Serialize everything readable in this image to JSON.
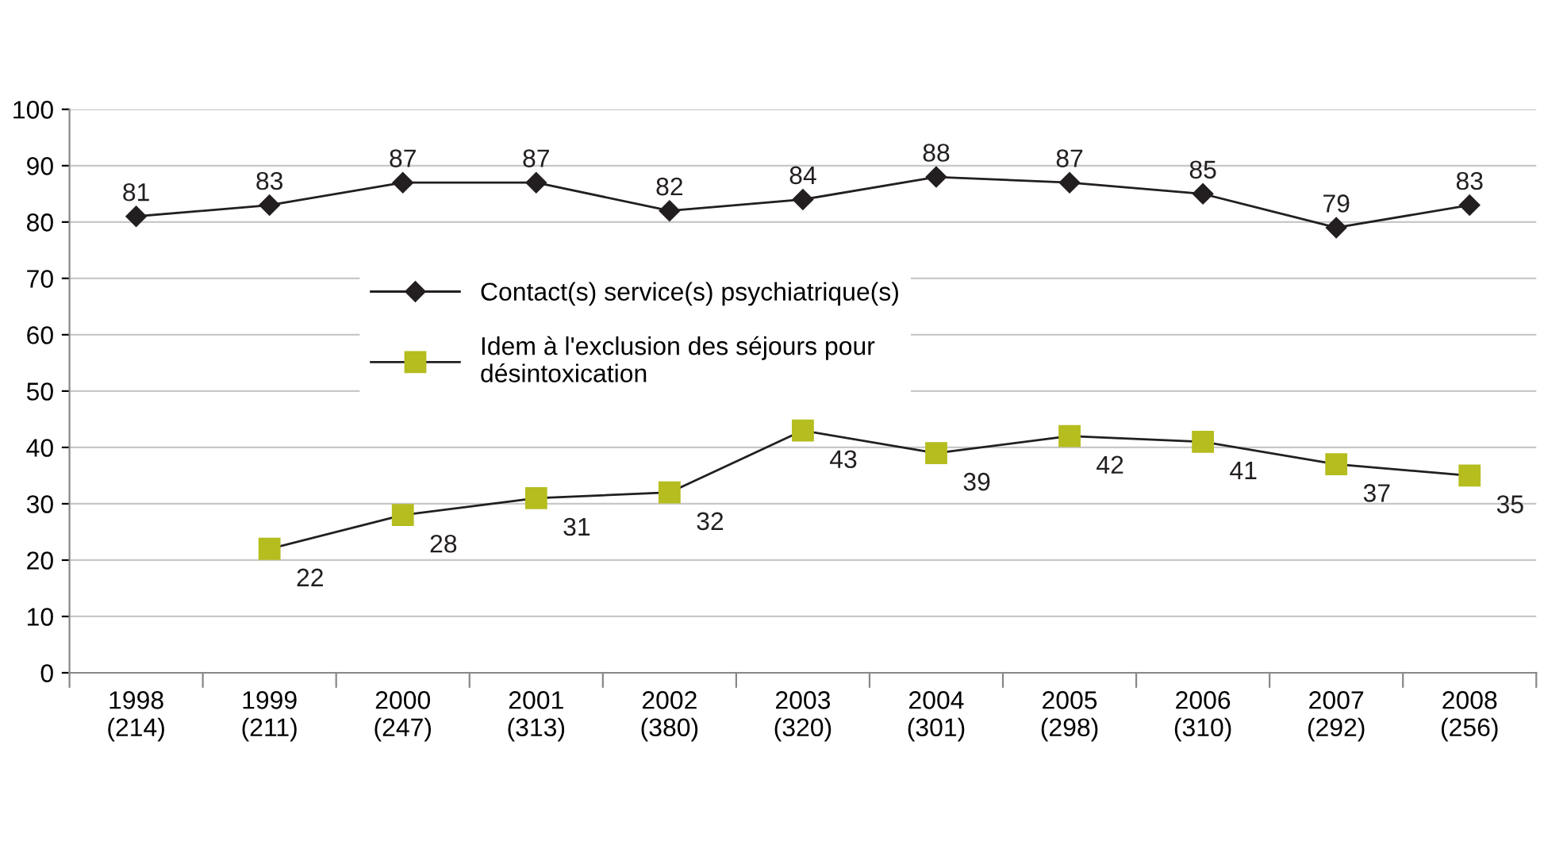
{
  "chart_data": {
    "type": "line",
    "categories": [
      "1998\n(214)",
      "1999\n(211)",
      "2000\n(247)",
      "2001\n(313)",
      "2002\n(380)",
      "2003\n(320)",
      "2004\n(301)",
      "2005\n(298)",
      "2006\n(310)",
      "2007\n(292)",
      "2008\n(256)"
    ],
    "series": [
      {
        "name": "Contact(s) service(s) psychiatrique(s)",
        "color": "#231f20",
        "marker": "diamond",
        "values": [
          81,
          83,
          87,
          87,
          82,
          84,
          88,
          87,
          85,
          79,
          83
        ]
      },
      {
        "name": "Idem à l'exclusion des séjours pour\ndésintoxication",
        "color": "#b5bd1f",
        "marker": "square",
        "values": [
          null,
          22,
          28,
          31,
          32,
          43,
          39,
          42,
          41,
          37,
          35
        ]
      }
    ],
    "ylim": [
      0,
      100
    ],
    "yticks": [
      0,
      10,
      20,
      30,
      40,
      50,
      60,
      70,
      80,
      90,
      100
    ],
    "grid": "y",
    "legend": "center",
    "data_labels": true,
    "line_style": "solid"
  }
}
